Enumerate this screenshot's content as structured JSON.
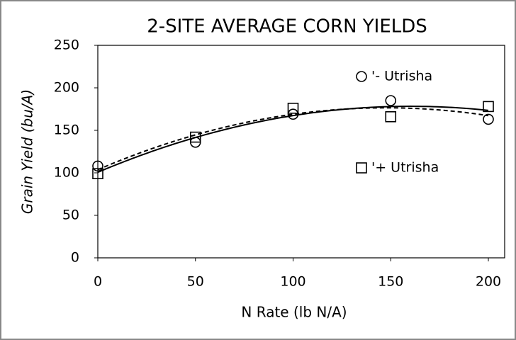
{
  "chart_data": {
    "type": "scatter",
    "title": "2-SITE AVERAGE CORN YIELDS",
    "x_label": "N Rate (lb N/A)",
    "y_label": "Grain Yield (bu/A)",
    "x": [
      0,
      50,
      100,
      150,
      200
    ],
    "series": [
      {
        "name": "'- Utrisha",
        "color": "#000000",
        "marker": "circle",
        "trendline": "quadratic",
        "trendline_style": "dashed",
        "values": [
          108,
          136,
          169,
          185,
          163
        ]
      },
      {
        "name": "'+ Utrisha",
        "color": "#000000",
        "marker": "square",
        "trendline": "quadratic",
        "trendline_style": "solid",
        "values": [
          99,
          142,
          176,
          166,
          178
        ]
      }
    ],
    "xlim": [
      0,
      200
    ],
    "xticks": [
      0,
      50,
      100,
      150,
      200
    ],
    "ylim": [
      0,
      250
    ],
    "yticks": [
      0,
      50,
      100,
      150,
      200,
      250
    ],
    "grid": false,
    "legend": "right"
  }
}
